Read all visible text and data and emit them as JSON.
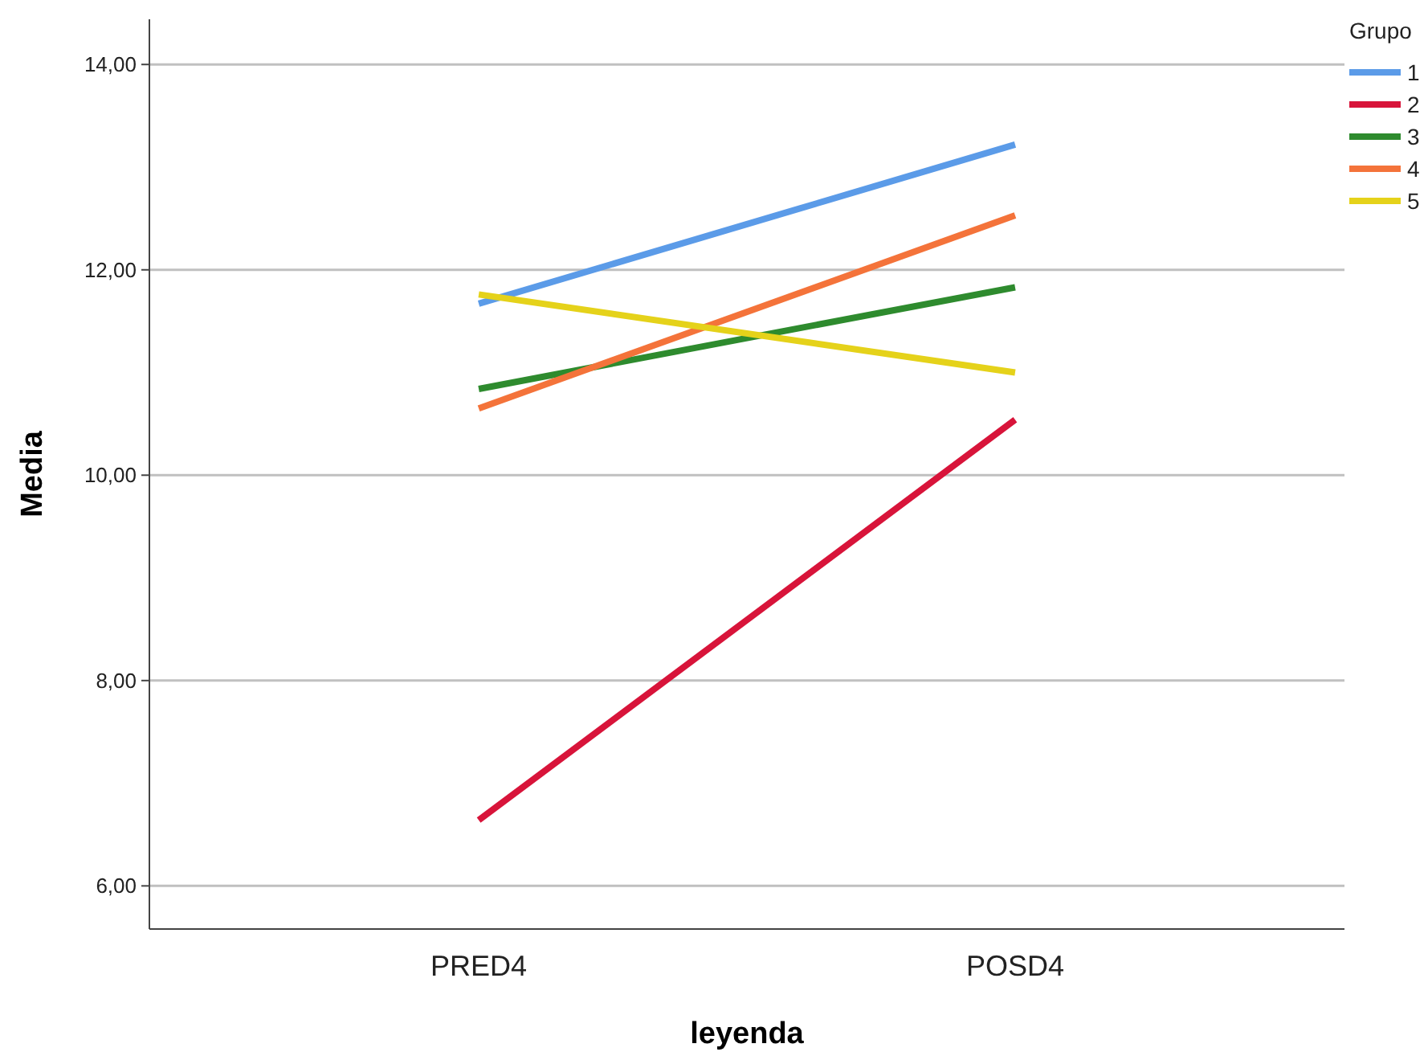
{
  "chart_data": {
    "type": "line",
    "xlabel": "leyenda",
    "ylabel": "Media",
    "legend_title": "Grupo",
    "categories": [
      "PRED4",
      "POSD4"
    ],
    "series": [
      {
        "name": "1",
        "color": "#5b9be8",
        "values": [
          11.67,
          13.22
        ]
      },
      {
        "name": "2",
        "color": "#d8143a",
        "values": [
          6.64,
          10.54
        ]
      },
      {
        "name": "3",
        "color": "#2e8b2e",
        "values": [
          10.84,
          11.83
        ]
      },
      {
        "name": "4",
        "color": "#f4733a",
        "values": [
          10.65,
          12.53
        ]
      },
      {
        "name": "5",
        "color": "#e5d21a",
        "values": [
          11.76,
          11.0
        ]
      }
    ],
    "ylim": [
      5.58,
      14.44
    ],
    "yticks": [
      {
        "value": 6,
        "label": "6,00"
      },
      {
        "value": 8,
        "label": "8,00"
      },
      {
        "value": 10,
        "label": "10,00"
      },
      {
        "value": 12,
        "label": "12,00"
      },
      {
        "value": 14,
        "label": "14,00"
      }
    ],
    "grid": "y",
    "legend": "top right",
    "marker": "none",
    "line_style": "solid"
  }
}
